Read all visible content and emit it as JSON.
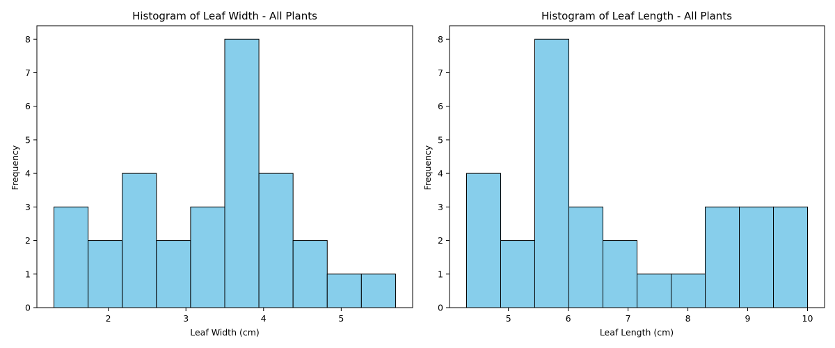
{
  "chart_data": [
    {
      "type": "bar",
      "title": "Histogram of Leaf Width - All Plants",
      "xlabel": "Leaf Width (cm)",
      "ylabel": "Frequency",
      "bin_edges": [
        1.3,
        1.74,
        2.18,
        2.62,
        3.06,
        3.5,
        3.94,
        4.38,
        4.82,
        5.26,
        5.7
      ],
      "values": [
        3,
        2,
        4,
        2,
        3,
        8,
        4,
        2,
        1,
        1
      ],
      "xlim": [
        1.08,
        5.92
      ],
      "ylim": [
        0,
        8.4
      ],
      "xticks": [
        2,
        3,
        4,
        5
      ],
      "yticks": [
        0,
        1,
        2,
        3,
        4,
        5,
        6,
        7,
        8
      ],
      "bar_color": "#87CEEB",
      "edge_color": "#000000",
      "grid": false
    },
    {
      "type": "bar",
      "title": "Histogram of Leaf Length - All Plants",
      "xlabel": "Leaf Length (cm)",
      "ylabel": "Frequency",
      "bin_edges": [
        4.3,
        4.87,
        5.44,
        6.01,
        6.58,
        7.15,
        7.72,
        8.29,
        8.86,
        9.43,
        10.0
      ],
      "values": [
        4,
        2,
        8,
        3,
        2,
        1,
        1,
        3,
        3,
        3
      ],
      "xlim": [
        4.015,
        10.285
      ],
      "ylim": [
        0,
        8.4
      ],
      "xticks": [
        5,
        6,
        7,
        8,
        9,
        10
      ],
      "yticks": [
        0,
        1,
        2,
        3,
        4,
        5,
        6,
        7,
        8
      ],
      "bar_color": "#87CEEB",
      "edge_color": "#000000",
      "grid": false
    }
  ]
}
